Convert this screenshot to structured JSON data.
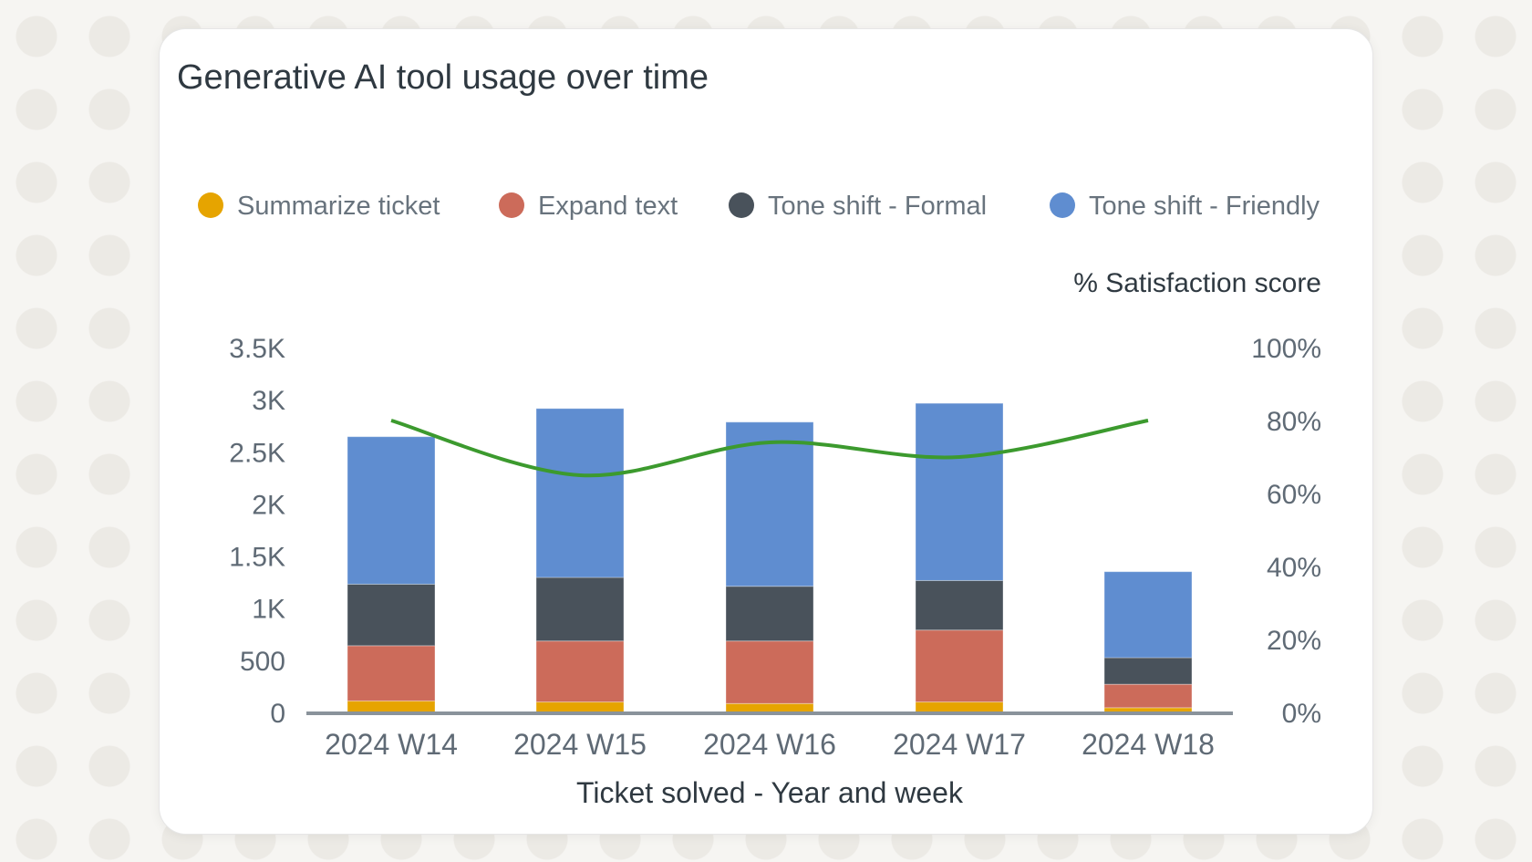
{
  "chart_data": {
    "type": "bar",
    "stacked": true,
    "title": "Generative AI tool usage over time",
    "xlabel": "Ticket solved - Year and week",
    "ylabel": "",
    "y2label": "% Satisfaction score",
    "ylim": [
      0,
      3500
    ],
    "y2lim": [
      0,
      100
    ],
    "yticks": [
      "0",
      "500",
      "1K",
      "1.5K",
      "2K",
      "2.5K",
      "3K",
      "3.5K"
    ],
    "y2ticks": [
      "0%",
      "20%",
      "40%",
      "60%",
      "80%",
      "100%"
    ],
    "grid": false,
    "legend_position": "top",
    "categories": [
      "2024 W14",
      "2024 W15",
      "2024 W16",
      "2024 W17",
      "2024 W18"
    ],
    "series": [
      {
        "name": "Summarize ticket",
        "color": "#e6a400",
        "values": [
          110,
          100,
          85,
          100,
          45
        ]
      },
      {
        "name": "Expand text",
        "color": "#cc6b5a",
        "values": [
          530,
          585,
          600,
          690,
          225
        ]
      },
      {
        "name": "Tone shift - Formal",
        "color": "#49525b",
        "values": [
          590,
          610,
          525,
          475,
          255
        ]
      },
      {
        "name": "Tone shift - Friendly",
        "color": "#5f8dd0",
        "values": [
          1415,
          1620,
          1575,
          1700,
          825
        ]
      }
    ],
    "line_series": {
      "name": "% Satisfaction score",
      "color": "#3c9a2e",
      "axis": "right",
      "values": [
        80,
        65,
        74,
        70,
        80
      ]
    }
  }
}
